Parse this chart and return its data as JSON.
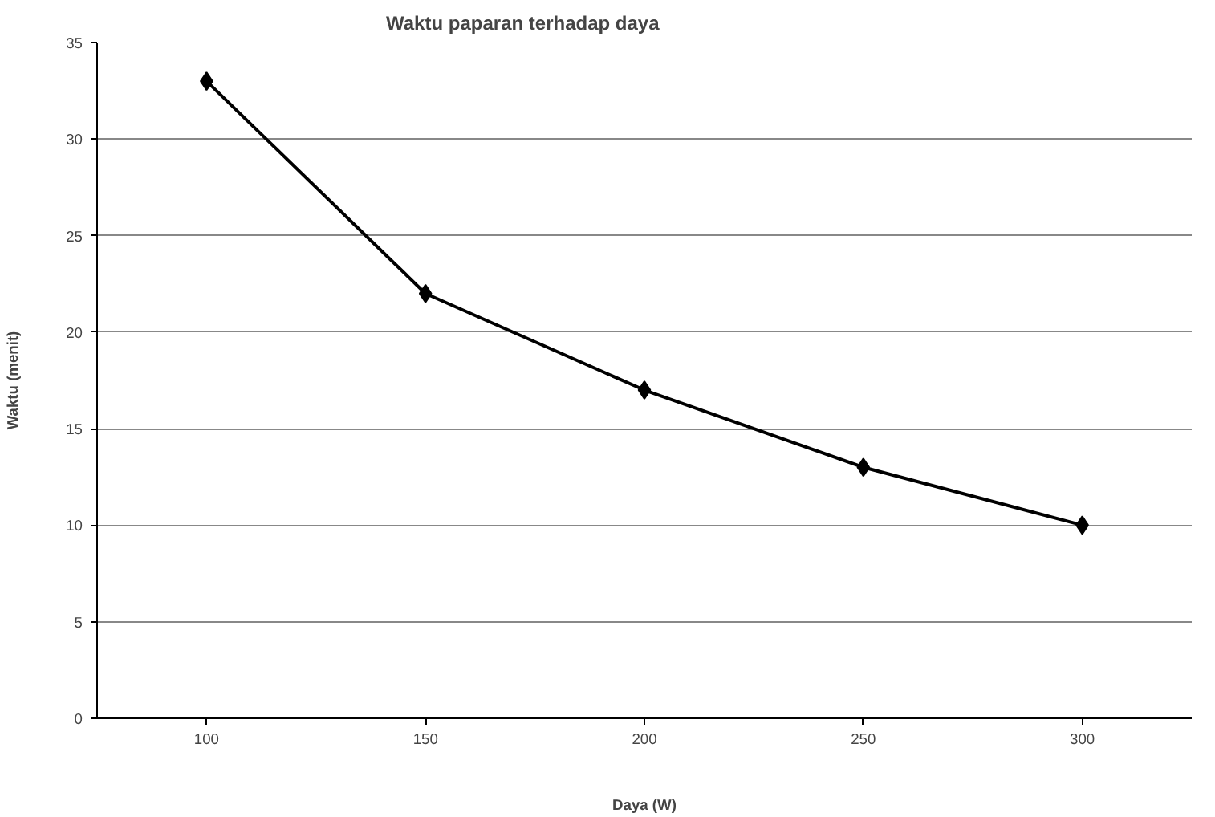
{
  "chart_data": {
    "type": "line",
    "title": "Waktu paparan terhadap daya",
    "xlabel": "Daya (W)",
    "ylabel": "Waktu (menit)",
    "categories": [
      "100",
      "150",
      "200",
      "250",
      "300"
    ],
    "series": [
      {
        "color": "#000000",
        "values": [
          33,
          22,
          17,
          13,
          10
        ]
      }
    ],
    "ylim": [
      0,
      35
    ],
    "yticks": [
      0,
      5,
      10,
      15,
      20,
      25,
      30,
      35
    ],
    "grid": "y",
    "marker": "diamond",
    "line_style": "solid"
  }
}
